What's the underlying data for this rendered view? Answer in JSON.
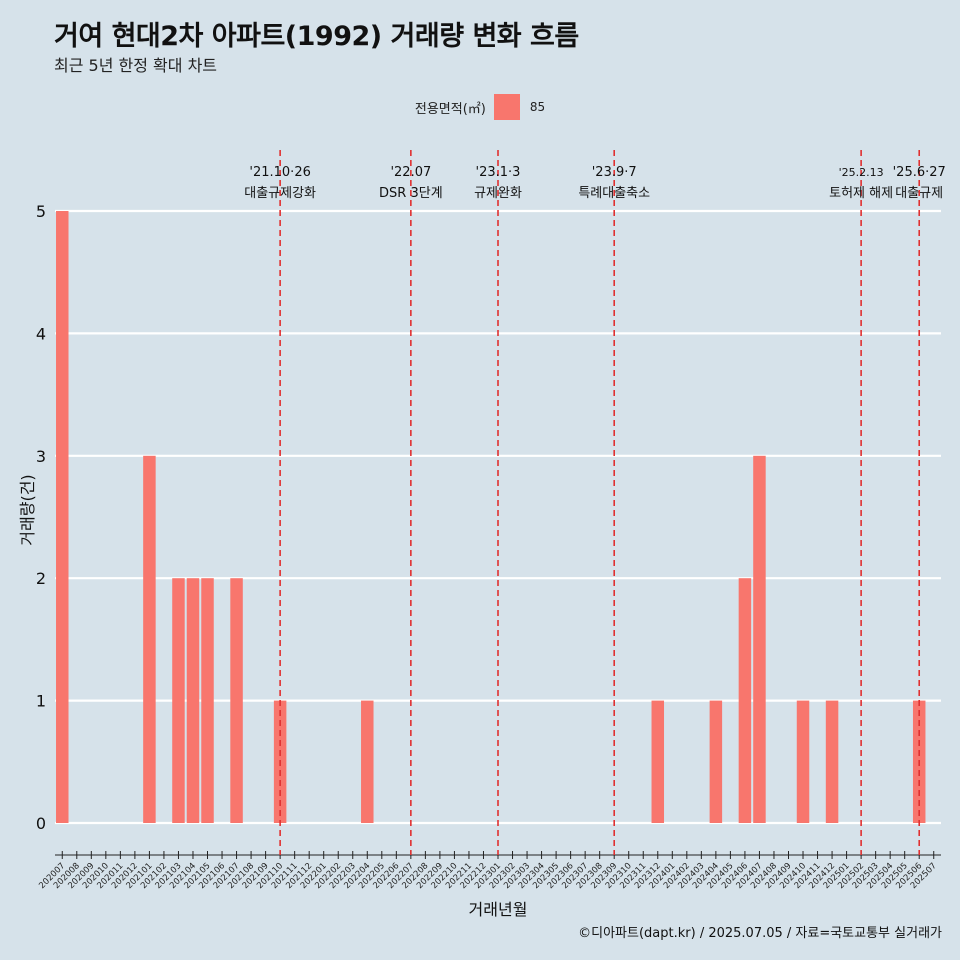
{
  "page": {
    "title": "거여 현대2차 아파트(1992) 거래량 변화 흐름",
    "subtitle": "최근 5년 한정 확대 차트",
    "footer": "©디아파트(dapt.kr) / 2025.07.05 / 자료=국토교통부 실거래가"
  },
  "legend": {
    "title": "전용면적(㎡)",
    "items": [
      {
        "label": "85",
        "color": "#f8766d"
      }
    ]
  },
  "chart_data": {
    "type": "bar",
    "xlabel": "거래년월",
    "ylabel": "거래량(건)",
    "ylim": [
      0,
      5
    ],
    "yticks": [
      0,
      1,
      2,
      3,
      4,
      5
    ],
    "grid": true,
    "legend_position": "top",
    "categories": [
      "202007",
      "202008",
      "202009",
      "202010",
      "202011",
      "202012",
      "202101",
      "202102",
      "202103",
      "202104",
      "202105",
      "202106",
      "202107",
      "202108",
      "202109",
      "202110",
      "202111",
      "202112",
      "202201",
      "202202",
      "202203",
      "202204",
      "202205",
      "202206",
      "202207",
      "202208",
      "202209",
      "202210",
      "202211",
      "202212",
      "202301",
      "202302",
      "202303",
      "202304",
      "202305",
      "202306",
      "202307",
      "202308",
      "202309",
      "202310",
      "202311",
      "202312",
      "202401",
      "202402",
      "202403",
      "202404",
      "202405",
      "202406",
      "202407",
      "202408",
      "202409",
      "202410",
      "202411",
      "202412",
      "202501",
      "202502",
      "202503",
      "202504",
      "202505",
      "202506",
      "202507"
    ],
    "series": [
      {
        "name": "85",
        "color": "#f8766d",
        "values": [
          5,
          0,
          0,
          0,
          0,
          0,
          3,
          0,
          2,
          2,
          2,
          0,
          2,
          0,
          0,
          1,
          0,
          0,
          0,
          0,
          0,
          1,
          0,
          0,
          0,
          0,
          0,
          0,
          0,
          0,
          0,
          0,
          0,
          0,
          0,
          0,
          0,
          0,
          0,
          0,
          0,
          1,
          0,
          0,
          0,
          1,
          0,
          2,
          3,
          0,
          0,
          1,
          0,
          1,
          0,
          0,
          0,
          0,
          0,
          1,
          0
        ]
      }
    ],
    "annotations": [
      {
        "at": "202110",
        "date": "'21.10·26",
        "label": "대출규제강화",
        "color": "#e03030"
      },
      {
        "at": "202207",
        "date": "'22.07",
        "label": "DSR 3단계",
        "color": "#e03030"
      },
      {
        "at": "202301",
        "date": "'23.1·3",
        "label": "규제완화",
        "color": "#e03030"
      },
      {
        "at": "202309",
        "date": "'23.9·7",
        "label": "특례대출축소",
        "color": "#e03030"
      },
      {
        "at": "202502",
        "date": "'25.2.13",
        "label": "토허제 해제",
        "color": "#e03030"
      },
      {
        "at": "202506",
        "date": "'25.6·27",
        "label": "대출규제",
        "color": "#e03030"
      }
    ]
  }
}
